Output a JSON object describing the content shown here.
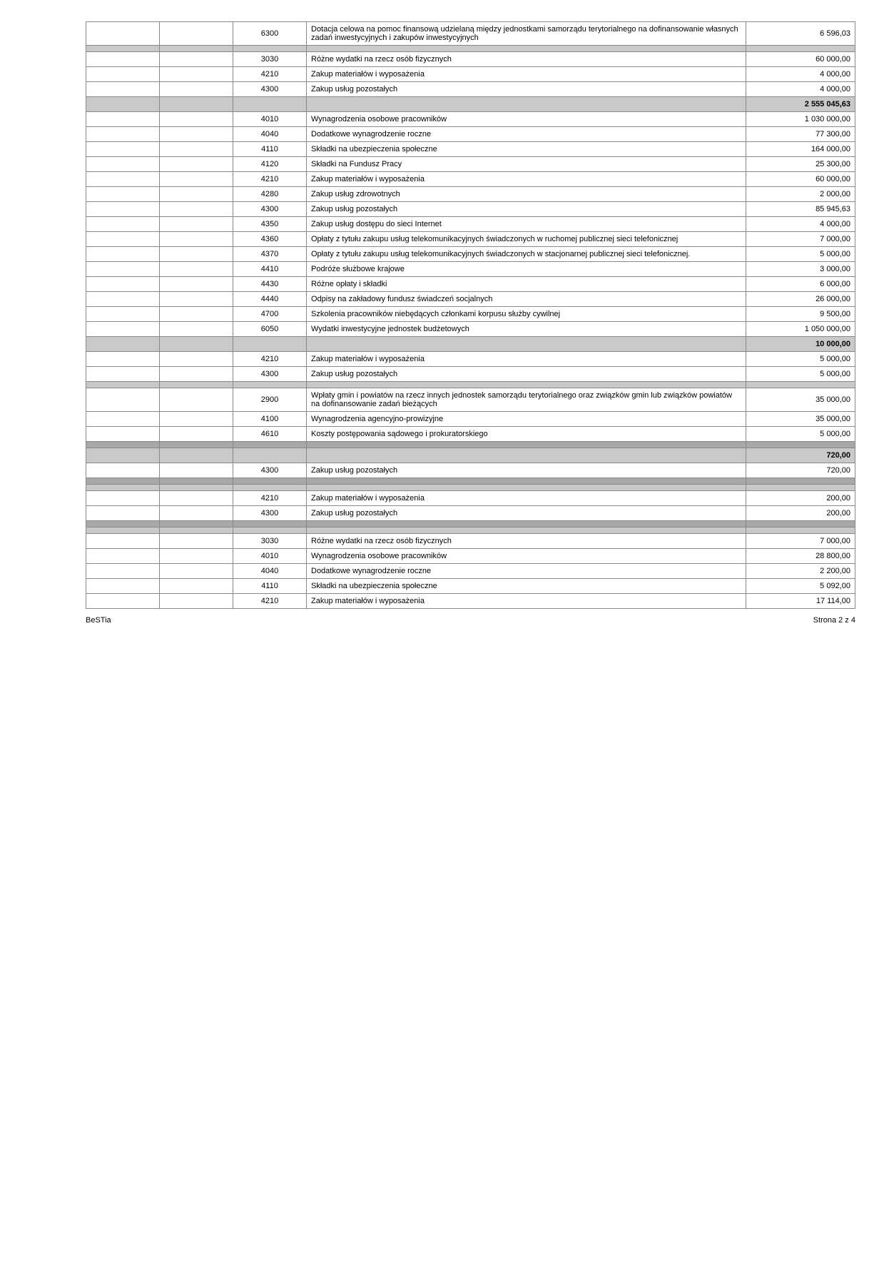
{
  "footer": {
    "left": "BeSTia",
    "right": "Strona 2 z 4"
  },
  "rows": [
    {
      "type": "plain",
      "code": "6300",
      "desc": "Dotacja celowa na pomoc finansową udzielaną między jednostkami samorządu terytorialnego na dofinansowanie własnych zadań inwestycyjnych i zakupów inwestycyjnych",
      "amount": "6 596,03"
    },
    {
      "type": "shaded",
      "code": "",
      "desc": "",
      "amount": ""
    },
    {
      "type": "plain",
      "code": "3030",
      "desc": "Różne wydatki na rzecz osób fizycznych",
      "amount": "60 000,00"
    },
    {
      "type": "plain",
      "code": "4210",
      "desc": "Zakup materiałów i wyposażenia",
      "amount": "4 000,00"
    },
    {
      "type": "plain",
      "code": "4300",
      "desc": "Zakup usług pozostałych",
      "amount": "4 000,00"
    },
    {
      "type": "shaded",
      "code": "",
      "desc": "",
      "amount": "2 555 045,63"
    },
    {
      "type": "plain",
      "code": "4010",
      "desc": "Wynagrodzenia osobowe pracowników",
      "amount": "1 030 000,00"
    },
    {
      "type": "plain",
      "code": "4040",
      "desc": "Dodatkowe wynagrodzenie roczne",
      "amount": "77 300,00"
    },
    {
      "type": "plain",
      "code": "4110",
      "desc": "Składki na ubezpieczenia społeczne",
      "amount": "164 000,00"
    },
    {
      "type": "plain",
      "code": "4120",
      "desc": "Składki na Fundusz Pracy",
      "amount": "25 300,00"
    },
    {
      "type": "plain",
      "code": "4210",
      "desc": "Zakup materiałów i wyposażenia",
      "amount": "60 000,00"
    },
    {
      "type": "plain",
      "code": "4280",
      "desc": "Zakup usług zdrowotnych",
      "amount": "2 000,00"
    },
    {
      "type": "plain",
      "code": "4300",
      "desc": "Zakup usług pozostałych",
      "amount": "85 945,63"
    },
    {
      "type": "plain",
      "code": "4350",
      "desc": "Zakup usług dostępu do sieci Internet",
      "amount": "4 000,00"
    },
    {
      "type": "plain",
      "code": "4360",
      "desc": "Opłaty z tytułu zakupu usług telekomunikacyjnych świadczonych w ruchomej publicznej sieci telefonicznej",
      "amount": "7 000,00"
    },
    {
      "type": "plain",
      "code": "4370",
      "desc": "Opłaty z tytułu zakupu usług telekomunikacyjnych świadczonych w stacjonarnej publicznej sieci telefonicznej.",
      "amount": "5 000,00"
    },
    {
      "type": "plain",
      "code": "4410",
      "desc": "Podróże służbowe krajowe",
      "amount": "3 000,00"
    },
    {
      "type": "plain",
      "code": "4430",
      "desc": "Różne opłaty i składki",
      "amount": "6 000,00"
    },
    {
      "type": "plain",
      "code": "4440",
      "desc": "Odpisy na zakładowy fundusz świadczeń socjalnych",
      "amount": "26 000,00"
    },
    {
      "type": "plain",
      "code": "4700",
      "desc": "Szkolenia pracowników niebędących członkami korpusu służby cywilnej",
      "amount": "9 500,00"
    },
    {
      "type": "plain",
      "code": "6050",
      "desc": "Wydatki inwestycyjne jednostek budżetowych",
      "amount": "1 050 000,00"
    },
    {
      "type": "shaded",
      "code": "",
      "desc": "",
      "amount": "10 000,00"
    },
    {
      "type": "plain",
      "code": "4210",
      "desc": "Zakup materiałów i wyposażenia",
      "amount": "5 000,00"
    },
    {
      "type": "plain",
      "code": "4300",
      "desc": "Zakup usług pozostałych",
      "amount": "5 000,00"
    },
    {
      "type": "shaded",
      "code": "",
      "desc": "",
      "amount": ""
    },
    {
      "type": "plain",
      "code": "2900",
      "desc": "Wpłaty gmin i powiatów na rzecz innych jednostek samorządu terytorialnego oraz związków gmin lub związków powiatów na dofinansowanie zadań bieżących",
      "amount": "35 000,00"
    },
    {
      "type": "plain",
      "code": "4100",
      "desc": "Wynagrodzenia agencyjno-prowizyjne",
      "amount": "35 000,00"
    },
    {
      "type": "plain",
      "code": "4610",
      "desc": "Koszty postępowania sądowego i prokuratorskiego",
      "amount": "5 000,00"
    },
    {
      "type": "shaded-dark",
      "code": "",
      "desc": "",
      "amount": ""
    },
    {
      "type": "shaded",
      "code": "",
      "desc": "",
      "amount": "720,00"
    },
    {
      "type": "plain",
      "code": "4300",
      "desc": "Zakup usług pozostałych",
      "amount": "720,00"
    },
    {
      "type": "shaded-dark",
      "code": "",
      "desc": "",
      "amount": ""
    },
    {
      "type": "shaded",
      "code": "",
      "desc": "",
      "amount": ""
    },
    {
      "type": "plain",
      "code": "4210",
      "desc": "Zakup materiałów i wyposażenia",
      "amount": "200,00"
    },
    {
      "type": "plain",
      "code": "4300",
      "desc": "Zakup usług pozostałych",
      "amount": "200,00"
    },
    {
      "type": "shaded-dark",
      "code": "",
      "desc": "",
      "amount": ""
    },
    {
      "type": "shaded",
      "code": "",
      "desc": "",
      "amount": ""
    },
    {
      "type": "plain",
      "code": "3030",
      "desc": "Różne wydatki na rzecz osób fizycznych",
      "amount": "7 000,00"
    },
    {
      "type": "plain",
      "code": "4010",
      "desc": "Wynagrodzenia osobowe pracowników",
      "amount": "28 800,00"
    },
    {
      "type": "plain",
      "code": "4040",
      "desc": "Dodatkowe wynagrodzenie roczne",
      "amount": "2 200,00"
    },
    {
      "type": "plain",
      "code": "4110",
      "desc": "Składki na ubezpieczenia społeczne",
      "amount": "5 092,00"
    },
    {
      "type": "plain",
      "code": "4210",
      "desc": "Zakup materiałów i wyposażenia",
      "amount": "17 114,00"
    }
  ]
}
